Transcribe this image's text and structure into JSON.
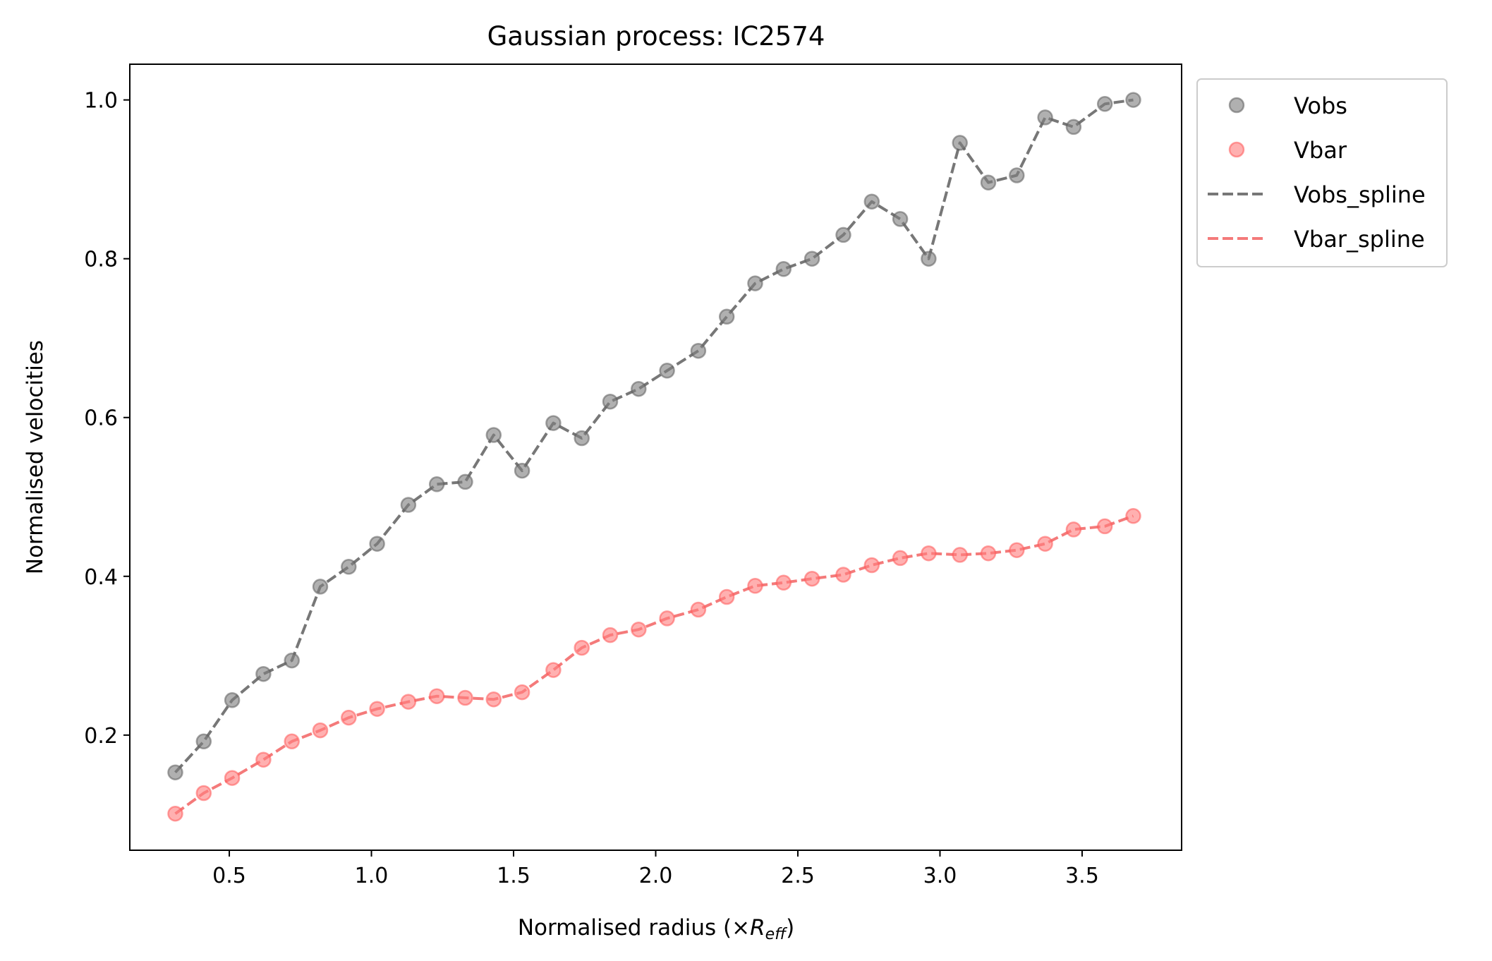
{
  "chart_data": {
    "type": "scatter",
    "title": "Gaussian process: IC2574",
    "xlabel_prefix": "Normalised radius (×",
    "xlabel_var": "R",
    "xlabel_sub": "eff",
    "xlabel_suffix": ")",
    "ylabel": "Normalised velocities",
    "xlim": [
      0.15,
      3.85
    ],
    "ylim": [
      0.055,
      1.045
    ],
    "xticks": [
      0.5,
      1.0,
      1.5,
      2.0,
      2.5,
      3.0,
      3.5
    ],
    "xtick_labels": [
      "0.5",
      "1.0",
      "1.5",
      "2.0",
      "2.5",
      "3.0",
      "3.5"
    ],
    "yticks": [
      0.2,
      0.4,
      0.6,
      0.8,
      1.0
    ],
    "ytick_labels": [
      "0.2",
      "0.4",
      "0.6",
      "0.8",
      "1.0"
    ],
    "grid": false,
    "legend_placement": "outside upper-right",
    "x": [
      0.31,
      0.41,
      0.51,
      0.62,
      0.72,
      0.82,
      0.92,
      1.02,
      1.13,
      1.23,
      1.33,
      1.43,
      1.53,
      1.64,
      1.74,
      1.84,
      1.94,
      2.04,
      2.15,
      2.25,
      2.35,
      2.45,
      2.55,
      2.66,
      2.76,
      2.86,
      2.96,
      3.07,
      3.17,
      3.27,
      3.37,
      3.47,
      3.58,
      3.68
    ],
    "series": [
      {
        "name": "Vobs",
        "kind": "scatter",
        "color": "#808080",
        "values": [
          0.153,
          0.192,
          0.244,
          0.277,
          0.294,
          0.387,
          0.412,
          0.441,
          0.49,
          0.516,
          0.519,
          0.578,
          0.533,
          0.593,
          0.574,
          0.62,
          0.636,
          0.659,
          0.684,
          0.727,
          0.769,
          0.787,
          0.8,
          0.83,
          0.872,
          0.85,
          0.8,
          0.946,
          0.896,
          0.905,
          0.978,
          0.966,
          0.995,
          1.0
        ]
      },
      {
        "name": "Vbar",
        "kind": "scatter",
        "color": "#ff7f7f",
        "values": [
          0.101,
          0.127,
          0.146,
          0.169,
          0.192,
          0.206,
          0.222,
          0.233,
          0.242,
          0.249,
          0.247,
          0.245,
          0.254,
          0.282,
          0.31,
          0.326,
          0.333,
          0.347,
          0.358,
          0.374,
          0.388,
          0.392,
          0.397,
          0.402,
          0.414,
          0.423,
          0.429,
          0.427,
          0.429,
          0.433,
          0.441,
          0.459,
          0.463,
          0.476
        ]
      },
      {
        "name": "Vobs_spline",
        "kind": "line",
        "dash": "dashed",
        "color": "#777777",
        "values": [
          0.153,
          0.192,
          0.244,
          0.277,
          0.294,
          0.387,
          0.412,
          0.441,
          0.49,
          0.516,
          0.519,
          0.578,
          0.533,
          0.593,
          0.574,
          0.62,
          0.636,
          0.659,
          0.684,
          0.727,
          0.769,
          0.787,
          0.8,
          0.83,
          0.872,
          0.85,
          0.8,
          0.946,
          0.896,
          0.905,
          0.978,
          0.966,
          0.995,
          1.0
        ]
      },
      {
        "name": "Vbar_spline",
        "kind": "line",
        "dash": "dashed",
        "color": "#f47a7a",
        "values": [
          0.101,
          0.127,
          0.146,
          0.169,
          0.192,
          0.206,
          0.222,
          0.233,
          0.242,
          0.249,
          0.247,
          0.245,
          0.254,
          0.282,
          0.31,
          0.326,
          0.333,
          0.347,
          0.358,
          0.374,
          0.388,
          0.392,
          0.397,
          0.402,
          0.414,
          0.423,
          0.429,
          0.427,
          0.429,
          0.433,
          0.441,
          0.459,
          0.463,
          0.476
        ]
      }
    ]
  }
}
